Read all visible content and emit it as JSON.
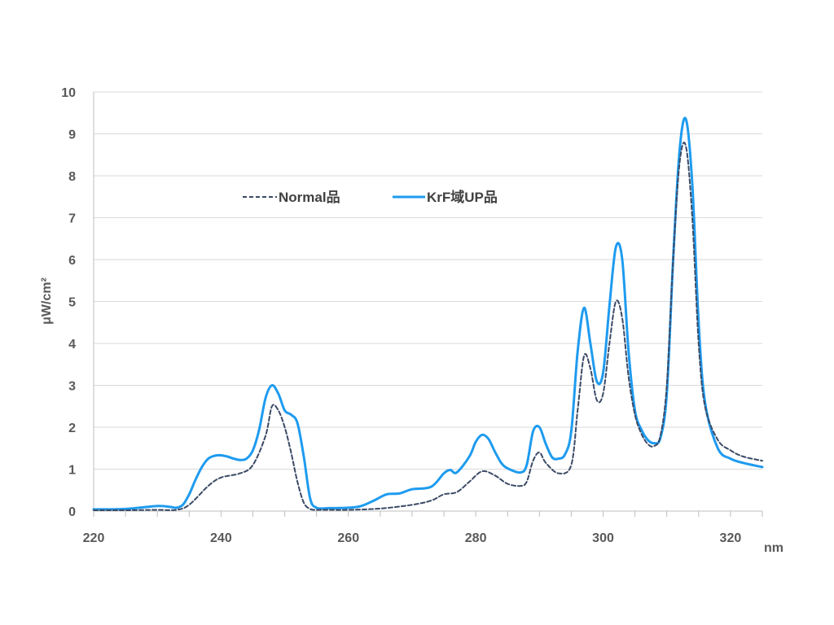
{
  "chart_data": {
    "type": "line",
    "xlabel": "nm",
    "ylabel": "μW/cm²",
    "xlim": [
      220,
      325
    ],
    "ylim": [
      0,
      10
    ],
    "x_ticks": [
      "220",
      "240",
      "260",
      "280",
      "300",
      "320"
    ],
    "y_ticks": [
      "0",
      "1",
      "2",
      "3",
      "4",
      "5",
      "6",
      "7",
      "8",
      "9",
      "10"
    ],
    "grid": "horizontal",
    "legend_position": "top-left-inside",
    "colors": {
      "normal": "#3b4a66",
      "krf": "#1e9bef",
      "grid": "#d9d9d9",
      "axis": "#bfbfbf"
    },
    "series": [
      {
        "name": "Normal品",
        "style": "dashed",
        "x": [
          220,
          225,
          230,
          233,
          235,
          238,
          240,
          243,
          245,
          247,
          248,
          249,
          250,
          251,
          252,
          253,
          254,
          255,
          257,
          260,
          265,
          270,
          273,
          275,
          277,
          279,
          281,
          283,
          285,
          287,
          288,
          289,
          290,
          291,
          293,
          295,
          296,
          297,
          298,
          299,
          300,
          301,
          302,
          303,
          304,
          305,
          306,
          307,
          308,
          309,
          310,
          311,
          312,
          313,
          314,
          315,
          316,
          318,
          320,
          322,
          325
        ],
        "y": [
          0.02,
          0.02,
          0.03,
          0.03,
          0.15,
          0.6,
          0.8,
          0.9,
          1.1,
          1.8,
          2.5,
          2.4,
          2.0,
          1.4,
          0.7,
          0.2,
          0.05,
          0.03,
          0.03,
          0.03,
          0.06,
          0.15,
          0.25,
          0.4,
          0.45,
          0.7,
          0.95,
          0.85,
          0.65,
          0.6,
          0.7,
          1.2,
          1.4,
          1.15,
          0.9,
          1.1,
          2.4,
          3.7,
          3.4,
          2.65,
          2.8,
          4.0,
          5.0,
          4.6,
          3.2,
          2.3,
          1.85,
          1.6,
          1.55,
          1.8,
          3.0,
          6.0,
          8.3,
          8.7,
          7.0,
          4.0,
          2.5,
          1.7,
          1.45,
          1.3,
          1.2
        ]
      },
      {
        "name": "KrF域UP品",
        "style": "solid",
        "x": [
          220,
          225,
          230,
          232,
          233,
          234,
          235,
          236,
          237,
          238,
          239,
          240,
          241,
          242,
          243,
          244,
          245,
          246,
          247,
          248,
          249,
          250,
          251,
          252,
          253,
          254,
          255,
          257,
          260,
          262,
          264,
          266,
          268,
          270,
          273,
          275,
          276,
          277,
          279,
          280,
          281,
          282,
          283,
          284,
          285,
          287,
          288,
          289,
          290,
          291,
          292,
          293,
          294,
          295,
          296,
          297,
          298,
          299,
          300,
          301,
          302,
          303,
          304,
          305,
          306,
          307,
          308,
          309,
          310,
          311,
          312,
          313,
          314,
          315,
          316,
          318,
          320,
          322,
          325
        ],
        "y": [
          0.04,
          0.05,
          0.12,
          0.1,
          0.08,
          0.15,
          0.4,
          0.75,
          1.05,
          1.25,
          1.32,
          1.33,
          1.3,
          1.25,
          1.22,
          1.25,
          1.45,
          1.95,
          2.7,
          3.0,
          2.8,
          2.4,
          2.3,
          2.1,
          1.3,
          0.3,
          0.08,
          0.07,
          0.08,
          0.12,
          0.25,
          0.4,
          0.42,
          0.52,
          0.58,
          0.9,
          0.98,
          0.92,
          1.3,
          1.65,
          1.82,
          1.72,
          1.42,
          1.15,
          1.02,
          0.92,
          1.1,
          1.9,
          2.0,
          1.6,
          1.28,
          1.25,
          1.35,
          1.9,
          3.8,
          4.85,
          4.0,
          3.1,
          3.3,
          4.9,
          6.3,
          6.0,
          3.8,
          2.4,
          1.95,
          1.7,
          1.62,
          1.75,
          2.8,
          6.0,
          8.6,
          9.35,
          7.8,
          4.5,
          2.6,
          1.5,
          1.25,
          1.15,
          1.05
        ]
      }
    ]
  }
}
